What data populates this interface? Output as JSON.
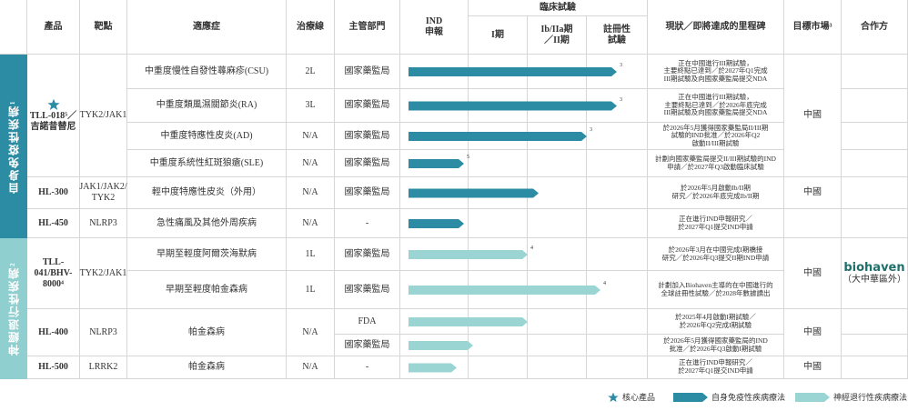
{
  "header": {
    "product": "產品",
    "target": "靶點",
    "indication": "適應症",
    "line": "治療線",
    "regulator": "主管部門",
    "ind": "IND\n申報",
    "clinical": "臨床試驗",
    "phase1": "I期",
    "phase2": "Ib/IIa期\n／II期",
    "pivotal": "註冊性\n試驗",
    "status": "現狀／即將達成的里程碑",
    "market": "目標市場³",
    "partner": "合作方"
  },
  "groups": [
    "自身免疫性疾病¹",
    "神經退行性疾病²"
  ],
  "products": [
    {
      "name": "TLL-018⁵／\n吉諾昔替尼",
      "target": "TYK2/JAK1"
    },
    {
      "name": "HL-300",
      "target": "JAK1/JAK2/\nTYK2"
    },
    {
      "name": "HL-450",
      "target": "NLRP3"
    },
    {
      "name": "TLL-\n041/BHV-\n8000⁴",
      "target": "TYK2/JAK1"
    },
    {
      "name": "HL-400",
      "target": "NLRP3"
    },
    {
      "name": "HL-500",
      "target": "LRRK2"
    }
  ],
  "rows": [
    {
      "indication": "中重度慢性自發性蕁麻疹(CSU)",
      "line": "2L",
      "regulator": "國家藥監局",
      "note": "3",
      "status": "正在中國進行III期試驗，\n主要終點已達到／於2027年Q1完成\nIII期試驗及向國家藥監局提交NDA"
    },
    {
      "indication": "中重度類風濕關節炎(RA)",
      "line": "3L",
      "regulator": "國家藥監局",
      "note": "3",
      "status": "正在中國進行III期試驗，\n主要終點已達到／於2026年底完成\nIII期試驗及向國家藥監局提交NDA"
    },
    {
      "indication": "中重度特應性皮炎(AD)",
      "line": "N/A",
      "regulator": "國家藥監局",
      "note": "3",
      "status": "於2026年5月獲得國家藥監局II/III期\n試驗的IND批准／於2026年Q2\n啟動II/III期試驗"
    },
    {
      "indication": "中重度系統性紅斑狼瘡(SLE)",
      "line": "N/A",
      "regulator": "國家藥監局",
      "note": "5",
      "status": "計劃向國家藥監局提交II/III期試驗的IND\n申請／於2027年Q3啟動臨床試驗"
    },
    {
      "indication": "輕中度特應性皮炎（外用）",
      "line": "N/A",
      "regulator": "國家藥監局",
      "status": "於2026年5月啟動Ib/II期\n研究／於2026年底完成Ib/II期"
    },
    {
      "indication": "急性痛風及其他外周疾病",
      "line": "N/A",
      "regulator": "-",
      "status": "正在進行IND申報研究／\n於2027年Q1提交IND申請"
    },
    {
      "indication": "早期至輕度阿爾茨海默病",
      "line": "1L",
      "regulator": "國家藥監局",
      "note": "4",
      "status": "於2026年3月在中國完成I期橋接\n研究／於2026年Q3提交II期IND申請"
    },
    {
      "indication": "早期至輕度帕金森病",
      "line": "1L",
      "regulator": "國家藥監局",
      "note": "4",
      "status": "計劃加入Biohaven主導的在中國進行的\n全球註冊性試驗／於2028年數據讀出"
    },
    {
      "indication": "帕金森病",
      "line": "N/A",
      "regulator": "FDA",
      "status": "於2025年4月啟動I期試驗／\n於2026年Q2完成I期試驗"
    },
    {
      "regulator": "國家藥監局",
      "status": "於2026年5月獲得國家藥監局的IND\n批准／於2026年Q3啟動I期試驗"
    },
    {
      "indication": "帕金森病",
      "line": "N/A",
      "regulator": "-",
      "status": "正在進行IND申報研究／\n於2027年Q1提交IND申請"
    }
  ],
  "markets": [
    "中國",
    "中國",
    "中國",
    "中國",
    "中國"
  ],
  "partner": {
    "logo": "biohaven",
    "region": "（大中華區外）"
  },
  "legend": [
    "核心產品",
    "自身免疫性疾病療法",
    "神經退行性疾病療法"
  ]
}
